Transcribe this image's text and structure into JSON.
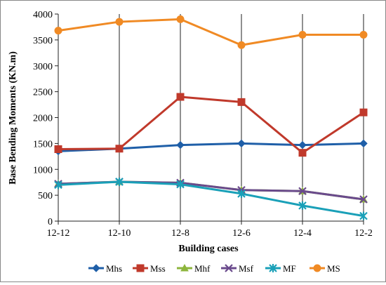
{
  "chart_data": {
    "type": "line",
    "title": "",
    "xlabel": "Building cases",
    "ylabel": "Base Bending Moments (KN.m)",
    "categories": [
      "12-12",
      "12-10",
      "12-8",
      "12-6",
      "12-4",
      "12-2"
    ],
    "ylim": [
      0,
      4000
    ],
    "yticks": [
      0,
      500,
      1000,
      1500,
      2000,
      2500,
      3000,
      3500,
      4000
    ],
    "grid": "vertical lines at categories",
    "legend": "bottom",
    "series": [
      {
        "name": "Mhs",
        "color": "#1f5fa8",
        "marker": "diamond",
        "values": [
          1350,
          1400,
          1470,
          1500,
          1470,
          1500
        ]
      },
      {
        "name": "Mss",
        "color": "#c0392b",
        "marker": "square",
        "values": [
          1390,
          1400,
          2400,
          2300,
          1320,
          2100
        ]
      },
      {
        "name": "Mhf",
        "color": "#8db53c",
        "marker": "triangle",
        "values": [
          720,
          760,
          740,
          600,
          580,
          420
        ]
      },
      {
        "name": "Msf",
        "color": "#6a4a8c",
        "marker": "x",
        "values": [
          720,
          760,
          740,
          600,
          580,
          420
        ]
      },
      {
        "name": "MF",
        "color": "#1aa0b8",
        "marker": "star",
        "values": [
          700,
          760,
          710,
          530,
          300,
          100
        ]
      },
      {
        "name": "MS",
        "color": "#f08a24",
        "marker": "circle",
        "values": [
          3680,
          3850,
          3900,
          3400,
          3600,
          3600
        ]
      }
    ]
  }
}
